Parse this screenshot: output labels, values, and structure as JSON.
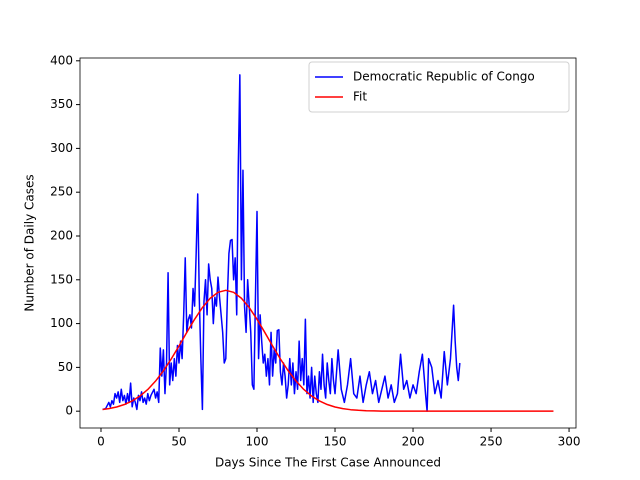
{
  "chart_data": {
    "type": "line",
    "x_label": "Days Since The First Case Announced",
    "y_label": "Number of Daily Cases",
    "xlim": [
      -13.45,
      304.45
    ],
    "ylim": [
      -19.2,
      403.2
    ],
    "xticks": [
      0,
      50,
      100,
      150,
      200,
      250,
      300
    ],
    "yticks": [
      0,
      50,
      100,
      150,
      200,
      250,
      300,
      350,
      400
    ],
    "legend": "upper right",
    "series": [
      {
        "name": "Democratic Republic of Congo",
        "color": "#0000ff",
        "x": [
          1,
          3,
          5,
          6,
          7,
          8,
          9,
          10,
          11,
          12,
          13,
          14,
          15,
          16,
          17,
          18,
          19,
          20,
          21,
          22,
          23,
          24,
          25,
          26,
          27,
          28,
          29,
          30,
          31,
          32,
          34,
          35,
          36,
          37,
          38,
          39,
          40,
          41,
          42,
          43,
          44,
          45,
          46,
          47,
          48,
          49,
          50,
          51,
          52,
          53,
          54,
          55,
          56,
          57,
          58,
          59,
          60,
          61,
          62,
          63,
          64,
          65,
          66,
          67,
          68,
          69,
          70,
          71,
          72,
          73,
          74,
          75,
          76,
          77,
          78,
          79,
          80,
          81,
          82,
          83,
          84,
          85,
          86,
          87,
          88,
          89,
          90,
          91,
          92,
          93,
          94,
          95,
          96,
          97,
          98,
          99,
          100,
          101,
          102,
          103,
          104,
          105,
          106,
          107,
          108,
          109,
          110,
          111,
          112,
          113,
          114,
          115,
          116,
          117,
          118,
          119,
          120,
          121,
          122,
          123,
          124,
          125,
          126,
          127,
          128,
          129,
          130,
          131,
          132,
          133,
          134,
          135,
          136,
          137,
          138,
          139,
          140,
          141,
          142,
          143,
          144,
          145,
          146,
          147,
          148,
          149,
          150,
          152,
          154,
          156,
          158,
          160,
          162,
          164,
          166,
          168,
          170,
          172,
          174,
          176,
          178,
          180,
          182,
          184,
          186,
          188,
          190,
          192,
          194,
          196,
          198,
          200,
          202,
          204,
          206,
          208,
          209,
          210,
          212,
          214,
          216,
          218,
          220,
          222,
          224,
          226,
          227,
          228,
          229,
          230
        ],
        "values": [
          2,
          3,
          10,
          5,
          12,
          8,
          20,
          15,
          22,
          10,
          25,
          12,
          18,
          8,
          20,
          10,
          32,
          5,
          15,
          10,
          2,
          18,
          12,
          22,
          10,
          15,
          8,
          20,
          12,
          18,
          25,
          15,
          22,
          10,
          72,
          40,
          70,
          20,
          55,
          158,
          30,
          55,
          35,
          60,
          40,
          75,
          55,
          80,
          60,
          110,
          175,
          90,
          105,
          110,
          95,
          140,
          120,
          180,
          248,
          130,
          60,
          2,
          125,
          150,
          110,
          168,
          150,
          140,
          100,
          130,
          120,
          153,
          130,
          110,
          90,
          55,
          60,
          130,
          180,
          195,
          196,
          150,
          175,
          110,
          280,
          384,
          150,
          275,
          120,
          90,
          150,
          120,
          90,
          30,
          25,
          130,
          228,
          60,
          110,
          80,
          55,
          65,
          40,
          60,
          30,
          90,
          40,
          70,
          55,
          92,
          93,
          45,
          30,
          55,
          40,
          15,
          30,
          60,
          30,
          55,
          20,
          45,
          25,
          80,
          35,
          60,
          30,
          105,
          20,
          40,
          15,
          50,
          10,
          40,
          20,
          10,
          45,
          25,
          65,
          30,
          15,
          55,
          35,
          20,
          60,
          35,
          20,
          70,
          25,
          10,
          30,
          60,
          20,
          15,
          40,
          10,
          30,
          45,
          20,
          35,
          10,
          25,
          40,
          15,
          30,
          10,
          20,
          65,
          25,
          35,
          15,
          30,
          20,
          45,
          65,
          20,
          0,
          60,
          50,
          20,
          35,
          15,
          68,
          30,
          60,
          121,
          80,
          50,
          35,
          55
        ]
      },
      {
        "name": "Fit",
        "color": "#ff0000",
        "x": [
          1,
          5,
          10,
          15,
          20,
          25,
          30,
          35,
          40,
          45,
          50,
          55,
          60,
          65,
          70,
          75,
          80,
          85,
          90,
          95,
          100,
          105,
          110,
          115,
          120,
          125,
          130,
          135,
          140,
          145,
          150,
          155,
          160,
          165,
          170,
          175,
          180,
          185,
          190,
          200,
          210,
          220,
          230,
          240,
          250,
          260,
          270,
          280,
          290
        ],
        "values": [
          1.9,
          2.9,
          4.8,
          7.6,
          11.7,
          17.3,
          24.8,
          34.4,
          46.1,
          59.6,
          74.4,
          89.9,
          104.9,
          118.3,
          128.9,
          135.7,
          138,
          135.7,
          128.9,
          118.3,
          104.9,
          89.9,
          74.4,
          59.6,
          46.1,
          34.4,
          24.8,
          17.3,
          11.7,
          7.6,
          4.8,
          2.9,
          1.7,
          1.0,
          0.5,
          0.3,
          0.1,
          0.1,
          0,
          0,
          0,
          0,
          0,
          0,
          0,
          0,
          0,
          0,
          0
        ]
      }
    ]
  }
}
